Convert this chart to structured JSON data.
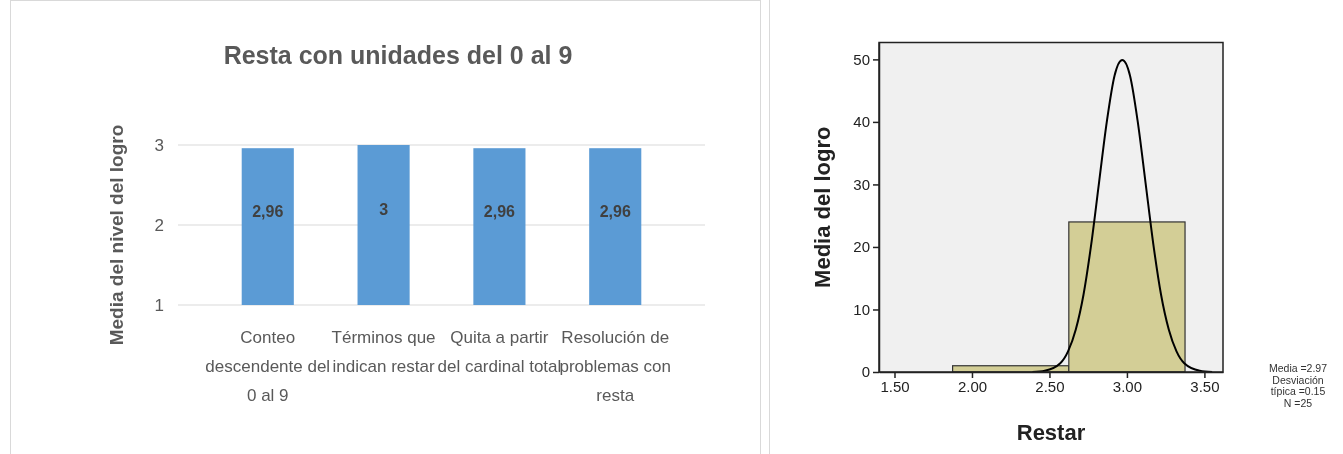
{
  "chart_data": [
    {
      "type": "bar",
      "title": "Resta con unidades del 0 al 9",
      "ylabel": "Media del nivel del logro",
      "categories": [
        "Conteo descendente del 0 al 9",
        "Términos que indican restar",
        "Quita a partir del cardinal total",
        "Resolución de problemas con resta"
      ],
      "values": [
        2.96,
        3,
        2.96,
        2.96
      ],
      "value_labels": [
        "2,96",
        "3",
        "2,96",
        "2,96"
      ],
      "color": "#5b9bd5",
      "ylim": [
        1,
        3
      ],
      "yticks": [
        1,
        2,
        3
      ],
      "grid": "y"
    },
    {
      "type": "histogram",
      "xlabel": "Restar",
      "ylabel": "Media del logro",
      "bins": [
        1.875,
        2.625,
        3.375
      ],
      "values": [
        1,
        24
      ],
      "color": "#d3ce96",
      "series": [
        {
          "type": "line",
          "color": "#000000",
          "x": [
            2.39,
            2.47,
            2.57,
            2.62,
            2.67,
            2.72,
            2.77,
            2.82,
            2.87,
            2.92,
            2.97,
            3.02,
            3.07,
            3.12,
            3.17,
            3.22,
            3.27,
            3.32,
            3.37,
            3.47,
            3.55
          ],
          "values": [
            0,
            0.2,
            1.4,
            3.3,
            6.8,
            12.4,
            20.5,
            30.3,
            40,
            47.4,
            49.9,
            47.4,
            40,
            30.3,
            20.5,
            12.4,
            6.8,
            3.3,
            1.4,
            0.2,
            0
          ]
        }
      ],
      "xlim": [
        1.4,
        3.62
      ],
      "xticks": [
        {
          "value": 1.5,
          "label": "1.50"
        },
        {
          "value": 2,
          "label": "2.00"
        },
        {
          "value": 2.5,
          "label": "2.50"
        },
        {
          "value": 3,
          "label": "3.00"
        },
        {
          "value": 3.5,
          "label": "3.50"
        }
      ],
      "ylim": [
        0,
        52.7
      ],
      "yticks": [
        0,
        10,
        20,
        30,
        40,
        50
      ],
      "annotations": [
        "Media =2.97",
        "Desviación típica =0.15",
        "N =25"
      ]
    }
  ]
}
